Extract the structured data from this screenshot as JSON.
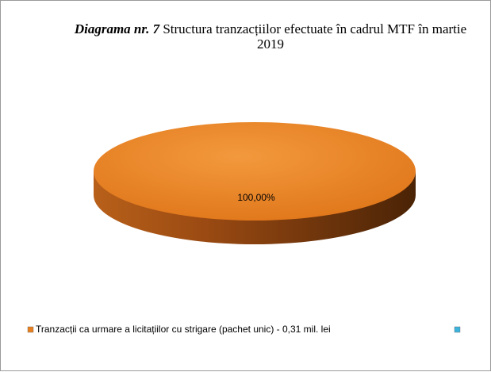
{
  "chart_data": {
    "type": "pie",
    "title": {
      "emphasis": "Diagrama nr. 7",
      "text": "Structura tranzacțiilor efectuate în cadrul MTF în  martie 2019"
    },
    "categories": [
      "Tranzacții ca urmare a licitațiilor cu strigare (pachet unic) -  0,31 mil. lei",
      null
    ],
    "values": [
      100,
      0
    ],
    "value_labels": [
      "100,00%",
      null
    ],
    "colors": [
      "#e9801f",
      "#3cb3dc"
    ],
    "legend": "bottom"
  }
}
